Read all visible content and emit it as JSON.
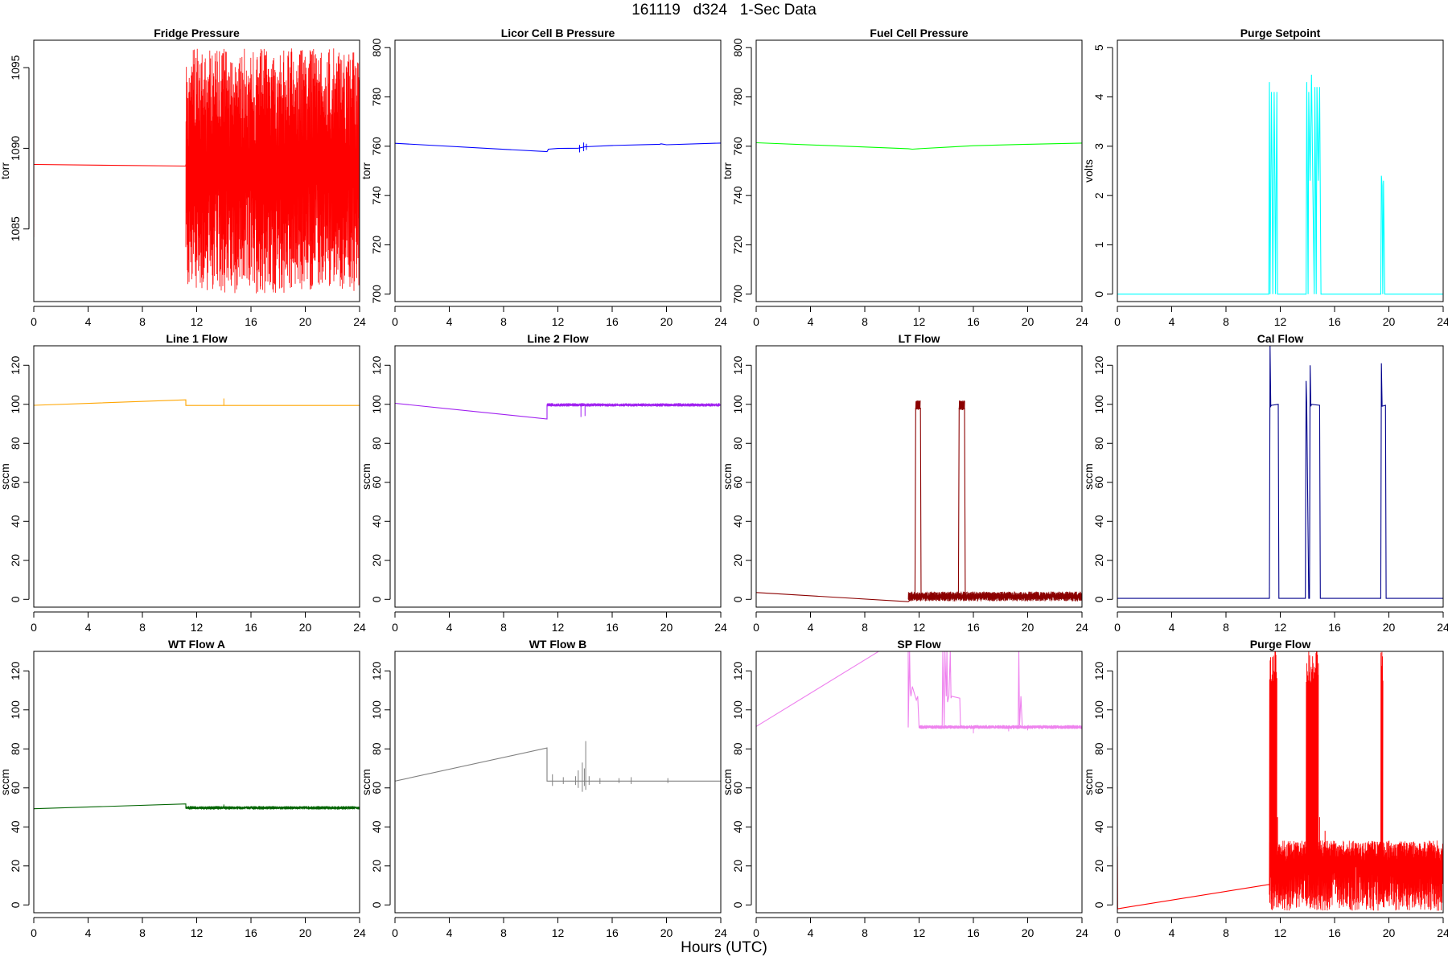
{
  "figure": {
    "title": "161119   d324   1-Sec Data",
    "xlabel": "Hours (UTC)"
  },
  "chart_data": [
    {
      "type": "line",
      "title": "Fridge Pressure",
      "ylabel": "torr",
      "color": "#ff0000",
      "xlim": [
        0,
        24
      ],
      "ylim": [
        1080.5,
        1096.7
      ],
      "xticks": [
        0,
        4,
        8,
        12,
        16,
        20,
        24
      ],
      "yticks": [
        1085,
        1090,
        1095
      ],
      "x": [
        0,
        0,
        0,
        0.05,
        11.2,
        11.2
      ],
      "y": [
        1084.5,
        1093,
        1089,
        1089,
        1088.9,
        1089
      ],
      "noise": {
        "x_start": 11.2,
        "x_end": 24,
        "low": 1081,
        "high": 1096.2,
        "center": 1089
      },
      "spikes": []
    },
    {
      "type": "line",
      "title": "Licor Cell B Pressure",
      "ylabel": "torr",
      "color": "#0000ff",
      "xlim": [
        0,
        24
      ],
      "ylim": [
        697,
        803
      ],
      "xticks": [
        0,
        4,
        8,
        12,
        16,
        20,
        24
      ],
      "yticks": [
        700,
        720,
        740,
        760,
        780,
        800
      ],
      "x": [
        0,
        11.2,
        11.3,
        12,
        13.5,
        14,
        16,
        19.5,
        19.6,
        20,
        24
      ],
      "y": [
        761.2,
        757.8,
        758.8,
        759.1,
        759.2,
        759.8,
        760.3,
        760.8,
        761,
        760.6,
        761.3
      ],
      "noise": null,
      "spikes": [
        [
          13.6,
          757.5,
          760.5
        ],
        [
          13.9,
          758,
          761.5
        ],
        [
          14.1,
          758.5,
          761
        ]
      ]
    },
    {
      "type": "line",
      "title": "Fuel Cell Pressure",
      "ylabel": "torr",
      "color": "#00ff00",
      "xlim": [
        0,
        24
      ],
      "ylim": [
        697,
        803
      ],
      "xticks": [
        0,
        4,
        8,
        12,
        16,
        20,
        24
      ],
      "yticks": [
        700,
        720,
        740,
        760,
        780,
        800
      ],
      "x": [
        0,
        11.2,
        11.5,
        12,
        14,
        16,
        20,
        24
      ],
      "y": [
        761.4,
        759,
        758.8,
        759,
        759.6,
        760.2,
        760.8,
        761.3
      ],
      "noise": null,
      "spikes": []
    },
    {
      "type": "line",
      "title": "Purge Setpoint",
      "ylabel": "volts",
      "color": "#00ffff",
      "xlim": [
        0,
        24
      ],
      "ylim": [
        -0.15,
        5.15
      ],
      "xticks": [
        0,
        4,
        8,
        12,
        16,
        20,
        24
      ],
      "yticks": [
        0,
        1,
        2,
        3,
        4,
        5
      ],
      "x": [
        0,
        11.15,
        11.2,
        11.25,
        11.3,
        11.35,
        11.4,
        11.45,
        11.5,
        11.55,
        11.6,
        11.65,
        11.7,
        11.75,
        11.8,
        13.9,
        13.95,
        14,
        14.05,
        14.1,
        14.2,
        14.3,
        14.4,
        14.5,
        14.55,
        14.6,
        14.65,
        14.7,
        14.8,
        14.9,
        15.0,
        19.4,
        19.45,
        19.5,
        19.55,
        19.6,
        19.7,
        24
      ],
      "y": [
        0,
        0,
        4.3,
        0,
        2.2,
        4.1,
        2.3,
        0,
        2.2,
        4.1,
        2.3,
        0,
        2.2,
        4.1,
        0,
        0,
        4.3,
        2.2,
        0,
        4.1,
        2.3,
        4.45,
        2.2,
        0,
        4.2,
        2.3,
        0,
        4.2,
        2.3,
        4.2,
        0,
        0,
        2.4,
        2.2,
        0,
        2.3,
        0,
        0
      ],
      "noise": null,
      "spikes": []
    },
    {
      "type": "line",
      "title": "Line 1 Flow",
      "ylabel": "sccm",
      "color": "#ffa500",
      "xlim": [
        0,
        24
      ],
      "ylim": [
        -4,
        130
      ],
      "xticks": [
        0,
        4,
        8,
        12,
        16,
        20,
        24
      ],
      "yticks": [
        0,
        20,
        40,
        60,
        80,
        100,
        120
      ],
      "x": [
        0,
        11.2,
        11.2,
        24
      ],
      "y": [
        99.5,
        102.3,
        99.4,
        99.4
      ],
      "noise": null,
      "spikes": [
        [
          14,
          99.4,
          103
        ]
      ]
    },
    {
      "type": "line",
      "title": "Line 2 Flow",
      "ylabel": "sccm",
      "color": "#a020f0",
      "xlim": [
        0,
        24
      ],
      "ylim": [
        -4,
        130
      ],
      "xticks": [
        0,
        4,
        8,
        12,
        16,
        20,
        24
      ],
      "yticks": [
        0,
        20,
        40,
        60,
        80,
        100,
        120
      ],
      "x": [
        0,
        11.2,
        11.2,
        24
      ],
      "y": [
        100.5,
        92.5,
        99.6,
        99.6
      ],
      "noise": {
        "x_start": 11.2,
        "x_end": 24,
        "low": 98.8,
        "high": 100.6,
        "center": 99.6
      },
      "spikes": [
        [
          13.7,
          93.5,
          100
        ],
        [
          14.0,
          94,
          100
        ]
      ]
    },
    {
      "type": "line",
      "title": "LT Flow",
      "ylabel": "sccm",
      "color": "#8b0000",
      "xlim": [
        0,
        24
      ],
      "ylim": [
        -4,
        130
      ],
      "xticks": [
        0,
        4,
        8,
        12,
        16,
        20,
        24
      ],
      "yticks": [
        0,
        20,
        40,
        60,
        80,
        100,
        120
      ],
      "x": [
        0,
        11.2,
        11.7,
        11.75,
        12.1,
        12.15,
        14.9,
        14.95,
        15.35,
        15.4,
        24
      ],
      "y": [
        3.5,
        -1.2,
        1.5,
        98,
        98,
        1.5,
        1.5,
        98,
        98,
        1.5,
        1.5
      ],
      "noise": {
        "x_start": 11.2,
        "x_end": 24,
        "low": -1,
        "high": 4,
        "center": 1.5
      },
      "bands": [
        [
          11.75,
          12.1,
          97,
          102
        ],
        [
          14.95,
          15.35,
          97,
          102
        ]
      ],
      "spikes": []
    },
    {
      "type": "line",
      "title": "Cal Flow",
      "ylabel": "sccm",
      "color": "#00008b",
      "xlim": [
        0,
        24
      ],
      "ylim": [
        -4,
        130
      ],
      "xticks": [
        0,
        4,
        8,
        12,
        16,
        20,
        24
      ],
      "yticks": [
        0,
        20,
        40,
        60,
        80,
        100,
        120
      ],
      "x": [
        0,
        11.2,
        11.25,
        11.3,
        11.35,
        11.85,
        11.9,
        13.85,
        13.9,
        13.95,
        14.1,
        14.15,
        14.2,
        14.25,
        14.3,
        14.9,
        14.95,
        19.4,
        19.45,
        19.5,
        19.75,
        19.8,
        24
      ],
      "y": [
        0.5,
        0.5,
        130,
        99,
        99.5,
        100,
        0.5,
        0.5,
        112,
        99,
        0.5,
        0.5,
        120,
        99,
        100,
        99.5,
        0.5,
        0.5,
        121,
        99,
        99.5,
        0.5,
        0.5
      ],
      "noise": null,
      "spikes": []
    },
    {
      "type": "line",
      "title": "WT Flow A",
      "ylabel": "sccm",
      "color": "#006400",
      "xlim": [
        0,
        24
      ],
      "ylim": [
        -4,
        130
      ],
      "xticks": [
        0,
        4,
        8,
        12,
        16,
        20,
        24
      ],
      "yticks": [
        0,
        20,
        40,
        60,
        80,
        100,
        120
      ],
      "x": [
        0,
        11.2,
        11.2,
        24
      ],
      "y": [
        49.3,
        51.8,
        49.8,
        49.8
      ],
      "noise": {
        "x_start": 11.2,
        "x_end": 24,
        "low": 48.9,
        "high": 50.7,
        "center": 49.8
      },
      "spikes": [
        [
          14,
          49.5,
          51.5
        ]
      ]
    },
    {
      "type": "line",
      "title": "WT Flow B",
      "ylabel": "sccm",
      "color": "#808080",
      "xlim": [
        0,
        24
      ],
      "ylim": [
        -4,
        130
      ],
      "xticks": [
        0,
        4,
        8,
        12,
        16,
        20,
        24
      ],
      "yticks": [
        0,
        20,
        40,
        60,
        80,
        100,
        120
      ],
      "x": [
        0,
        11.2,
        11.2,
        24
      ],
      "y": [
        63.5,
        80.5,
        63.5,
        63.5
      ],
      "noise": null,
      "spikes": [
        [
          11.6,
          61,
          67
        ],
        [
          12.4,
          62,
          65.5
        ],
        [
          13.3,
          61.5,
          66
        ],
        [
          13.5,
          60,
          69
        ],
        [
          13.8,
          58,
          73
        ],
        [
          13.95,
          61,
          70
        ],
        [
          14.05,
          59,
          84
        ],
        [
          14.3,
          61.5,
          66
        ],
        [
          15.1,
          62,
          65
        ],
        [
          16.5,
          62.5,
          65
        ],
        [
          17.4,
          62,
          65.5
        ],
        [
          20.1,
          62.5,
          65
        ]
      ]
    },
    {
      "type": "line",
      "title": "SP Flow",
      "ylabel": "sccm",
      "color": "#ee82ee",
      "xlim": [
        0,
        24
      ],
      "ylim": [
        -4,
        130
      ],
      "xticks": [
        0,
        4,
        8,
        12,
        16,
        20,
        24
      ],
      "yticks": [
        0,
        20,
        40,
        60,
        80,
        100,
        120
      ],
      "x": [
        0,
        9.5,
        11.2,
        11.2,
        11.3,
        11.35,
        11.4,
        11.5,
        11.8,
        11.9,
        12.0,
        13.7,
        13.75,
        13.85,
        13.9,
        14.0,
        14.05,
        14.1,
        14.2,
        14.3,
        14.35,
        14.4,
        15.0,
        15.05,
        19.3,
        19.35,
        19.4,
        19.5,
        19.6,
        24
      ],
      "y": [
        91.5,
        132,
        132,
        91,
        130,
        110,
        107,
        112,
        105,
        107,
        91,
        91,
        130,
        92,
        130,
        107,
        130,
        104,
        107,
        130,
        106,
        107,
        106,
        91,
        91,
        130,
        92,
        107,
        91,
        91
      ],
      "noise": {
        "x_start": 12.0,
        "x_end": 24,
        "low": 90.2,
        "high": 92.2,
        "center": 91.2
      },
      "spikes": [
        [
          16.0,
          88,
          92
        ],
        [
          18.6,
          89,
          92
        ],
        [
          20.0,
          89.5,
          92
        ]
      ]
    },
    {
      "type": "line",
      "title": "Purge Flow",
      "ylabel": "sccm",
      "color": "#ff0000",
      "xlim": [
        0,
        24
      ],
      "ylim": [
        -4,
        130
      ],
      "xticks": [
        0,
        4,
        8,
        12,
        16,
        20,
        24
      ],
      "yticks": [
        0,
        20,
        40,
        60,
        80,
        100,
        120
      ],
      "x": [
        0,
        0,
        0.02,
        11.2
      ],
      "y": [
        -2,
        30,
        -2,
        10.5
      ],
      "noise": {
        "x_start": 11.2,
        "x_end": 24,
        "low": -3,
        "high": 33,
        "center": 22
      },
      "bands": [
        [
          11.2,
          11.75,
          -3,
          130
        ],
        [
          13.9,
          14.8,
          -3,
          130
        ],
        [
          19.4,
          19.55,
          -3,
          130
        ]
      ],
      "spikes": [
        [
          11.8,
          10,
          45
        ],
        [
          14.9,
          15,
          45
        ],
        [
          15.3,
          12,
          38
        ]
      ]
    }
  ]
}
